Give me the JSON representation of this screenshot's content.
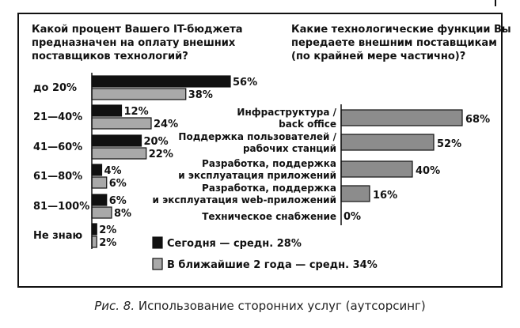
{
  "caption": {
    "prefix": "Рис. 8.",
    "text": " Использование сторонних услуг (аутсорсинг)"
  },
  "colors": {
    "today": "#111111",
    "future": "#a9a9a9",
    "right_bars": "#8c8c8c"
  },
  "chart_data": [
    {
      "type": "bar",
      "orientation": "horizontal",
      "title": "Какой процент Вашего IT-бюджета предназначен на оплату внешних поставщиков технологий?",
      "categories": [
        "до 20%",
        "21—40%",
        "41—60%",
        "61—80%",
        "81—100%",
        "Не знаю"
      ],
      "series": [
        {
          "name": "Сегодня — средн. 28%",
          "values": [
            56,
            12,
            20,
            4,
            6,
            2
          ]
        },
        {
          "name": "В ближайшие 2 года — средн. 34%",
          "values": [
            38,
            24,
            22,
            6,
            8,
            2
          ]
        }
      ],
      "value_suffix": "%",
      "xlim": [
        0,
        60
      ],
      "legend": "bottom-right"
    },
    {
      "type": "bar",
      "orientation": "horizontal",
      "title": "Какие технологические функции Вы передаете внешним поставщикам (по крайней мере частично)?",
      "categories": [
        [
          "Инфраструктура /",
          "back office"
        ],
        [
          "Поддержка пользователей /",
          "рабочих станций"
        ],
        [
          "Разработка, поддержка",
          "и эксплуатация приложений"
        ],
        [
          "Разработка, поддержка",
          "и эксплуатация web-приложений"
        ],
        [
          "Техническое снабжение"
        ]
      ],
      "values": [
        68,
        52,
        40,
        16,
        0
      ],
      "value_suffix": "%",
      "xlim": [
        0,
        70
      ]
    }
  ]
}
